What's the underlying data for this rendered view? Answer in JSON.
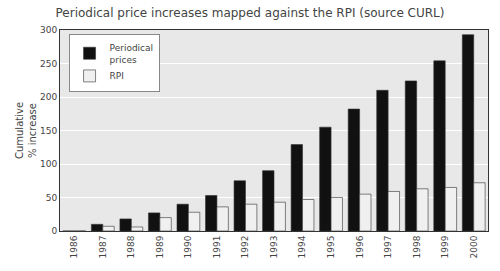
{
  "chart_data": {
    "type": "bar",
    "title": "Periodical price increases mapped against the RPI (source CURL)",
    "categories": [
      "1986",
      "1987",
      "1988",
      "1989",
      "1990",
      "1991",
      "1992",
      "1993",
      "1994",
      "1995",
      "1996",
      "1997",
      "1998",
      "1999",
      "2000"
    ],
    "series": [
      {
        "name": "Periodical\nprices",
        "color": "#111111",
        "values": [
          0,
          10,
          18,
          27,
          40,
          53,
          75,
          90,
          129,
          155,
          182,
          210,
          224,
          254,
          293
        ]
      },
      {
        "name": "RPI",
        "color": "#f0f0f0",
        "values": [
          0,
          7,
          6,
          20,
          28,
          36,
          40,
          43,
          47,
          50,
          55,
          59,
          63,
          65,
          72
        ]
      }
    ],
    "ylabel": "Cumulative\n% increase",
    "ylim": [
      0,
      300
    ],
    "yticks": [
      0,
      50,
      100,
      150,
      200,
      250,
      300
    ],
    "grid": true,
    "legend": "upper left"
  }
}
